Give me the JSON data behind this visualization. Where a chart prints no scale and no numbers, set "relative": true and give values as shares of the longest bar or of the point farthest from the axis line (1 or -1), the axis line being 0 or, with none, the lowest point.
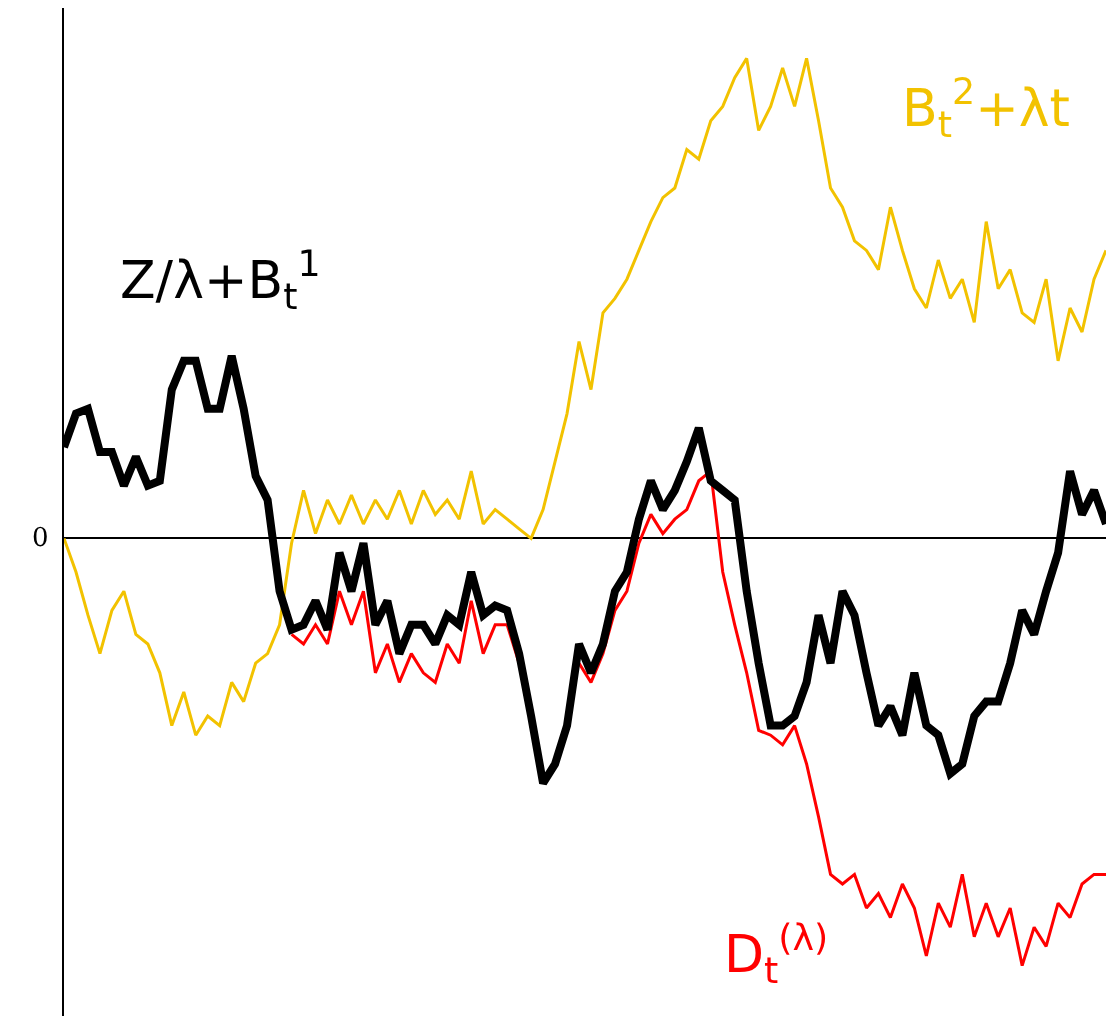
{
  "chart_data": {
    "type": "line",
    "relative": true,
    "annotations": [
      "0"
    ],
    "categories": [
      null,
      null,
      null,
      null,
      null,
      null,
      null,
      null,
      null,
      null,
      null,
      null,
      null,
      null,
      null,
      null,
      null,
      null,
      null,
      null,
      null,
      null,
      null,
      null,
      null,
      null,
      null,
      null,
      null,
      null,
      null,
      null,
      null,
      null,
      null,
      null,
      null,
      null,
      null,
      null,
      null,
      null,
      null,
      null,
      null,
      null,
      null,
      null,
      null,
      null,
      null,
      null,
      null,
      null,
      null,
      null,
      null,
      null,
      null,
      null,
      null,
      null,
      null,
      null,
      null,
      null,
      null,
      null,
      null,
      null,
      null,
      null,
      null,
      null,
      null,
      null,
      null,
      null,
      null,
      null,
      null,
      null,
      null,
      null,
      null,
      null,
      null,
      null
    ],
    "series": [
      {
        "name": "B$_{t}$$^{2}$+λt",
        "color": "#f2c200",
        "values": [
          0,
          -0.07,
          -0.16,
          -0.24,
          -0.15,
          -0.11,
          -0.2,
          -0.22,
          -0.28,
          -0.39,
          -0.32,
          -0.41,
          -0.37,
          -0.39,
          -0.3,
          -0.34,
          -0.26,
          -0.24,
          -0.18,
          -0.01,
          0.1,
          0.01,
          0.08,
          0.03,
          0.09,
          0.03,
          0.08,
          0.04,
          0.1,
          0.03,
          0.1,
          0.05,
          0.08,
          0.04,
          0.14,
          0.03,
          0.06,
          0.04,
          0.02,
          0,
          0.06,
          0.16,
          0.26,
          0.41,
          0.31,
          0.47,
          0.5,
          0.54,
          0.6,
          0.66,
          0.71,
          0.73,
          0.81,
          0.79,
          0.87,
          0.9,
          0.96,
          1,
          0.85,
          0.9,
          0.98,
          0.9,
          1,
          0.87,
          0.73,
          0.69,
          0.62,
          0.6,
          0.56,
          0.69,
          0.6,
          0.52,
          0.48,
          0.58,
          0.5,
          0.54,
          0.45,
          0.66,
          0.52,
          0.56,
          0.47,
          0.45,
          0.54,
          0.37,
          0.48,
          0.43,
          0.54,
          0.6
        ]
      },
      {
        "name": "D$_{t}$$^{(λ)}$",
        "color": "#ff0000",
        "values": [
          null,
          null,
          null,
          null,
          null,
          null,
          null,
          null,
          null,
          null,
          null,
          null,
          null,
          null,
          null,
          null,
          null,
          null,
          null,
          -0.2,
          -0.22,
          -0.18,
          -0.22,
          -0.11,
          -0.18,
          -0.11,
          -0.28,
          -0.22,
          -0.3,
          -0.24,
          -0.28,
          -0.3,
          -0.22,
          -0.26,
          -0.13,
          -0.24,
          -0.18,
          -0.18,
          -0.26,
          null,
          null,
          null,
          null,
          -0.26,
          -0.3,
          -0.24,
          -0.15,
          -0.11,
          -0.01,
          0.05,
          0.01,
          0.04,
          0.06,
          0.12,
          0.14,
          -0.07,
          -0.18,
          -0.28,
          -0.4,
          -0.41,
          -0.43,
          -0.39,
          -0.47,
          -0.58,
          -0.7,
          -0.72,
          -0.7,
          -0.77,
          -0.74,
          -0.79,
          -0.72,
          -0.77,
          -0.87,
          -0.76,
          -0.81,
          -0.7,
          -0.83,
          -0.76,
          -0.83,
          -0.77,
          -0.89,
          -0.81,
          -0.85,
          -0.76,
          -0.79,
          -0.72,
          -0.7,
          -0.7
        ]
      },
      {
        "name": "Z/λ+B$_{t}$$^{1}$",
        "color": "#000000",
        "values": [
          0.19,
          0.26,
          0.27,
          0.18,
          0.18,
          0.11,
          0.17,
          0.11,
          0.12,
          0.31,
          0.37,
          0.37,
          0.27,
          0.27,
          0.38,
          0.27,
          0.13,
          0.08,
          -0.11,
          -0.19,
          -0.18,
          -0.13,
          -0.19,
          -0.03,
          -0.11,
          -0.01,
          -0.18,
          -0.13,
          -0.24,
          -0.18,
          -0.18,
          -0.22,
          -0.16,
          -0.18,
          -0.07,
          -0.16,
          -0.14,
          -0.15,
          -0.24,
          -0.37,
          -0.51,
          -0.47,
          -0.39,
          -0.22,
          -0.28,
          -0.22,
          -0.11,
          -0.07,
          0.04,
          0.12,
          0.06,
          0.1,
          0.16,
          0.23,
          0.12,
          0.1,
          0.08,
          -0.11,
          -0.26,
          -0.39,
          -0.39,
          -0.37,
          -0.3,
          -0.16,
          -0.26,
          -0.11,
          -0.16,
          -0.28,
          -0.39,
          -0.35,
          -0.41,
          -0.28,
          -0.39,
          -0.41,
          -0.49,
          -0.47,
          -0.37,
          -0.34,
          -0.34,
          -0.26,
          -0.15,
          -0.2,
          -0.11,
          -0.03,
          0.14,
          0.05,
          0.1,
          0.03
        ]
      }
    ]
  }
}
